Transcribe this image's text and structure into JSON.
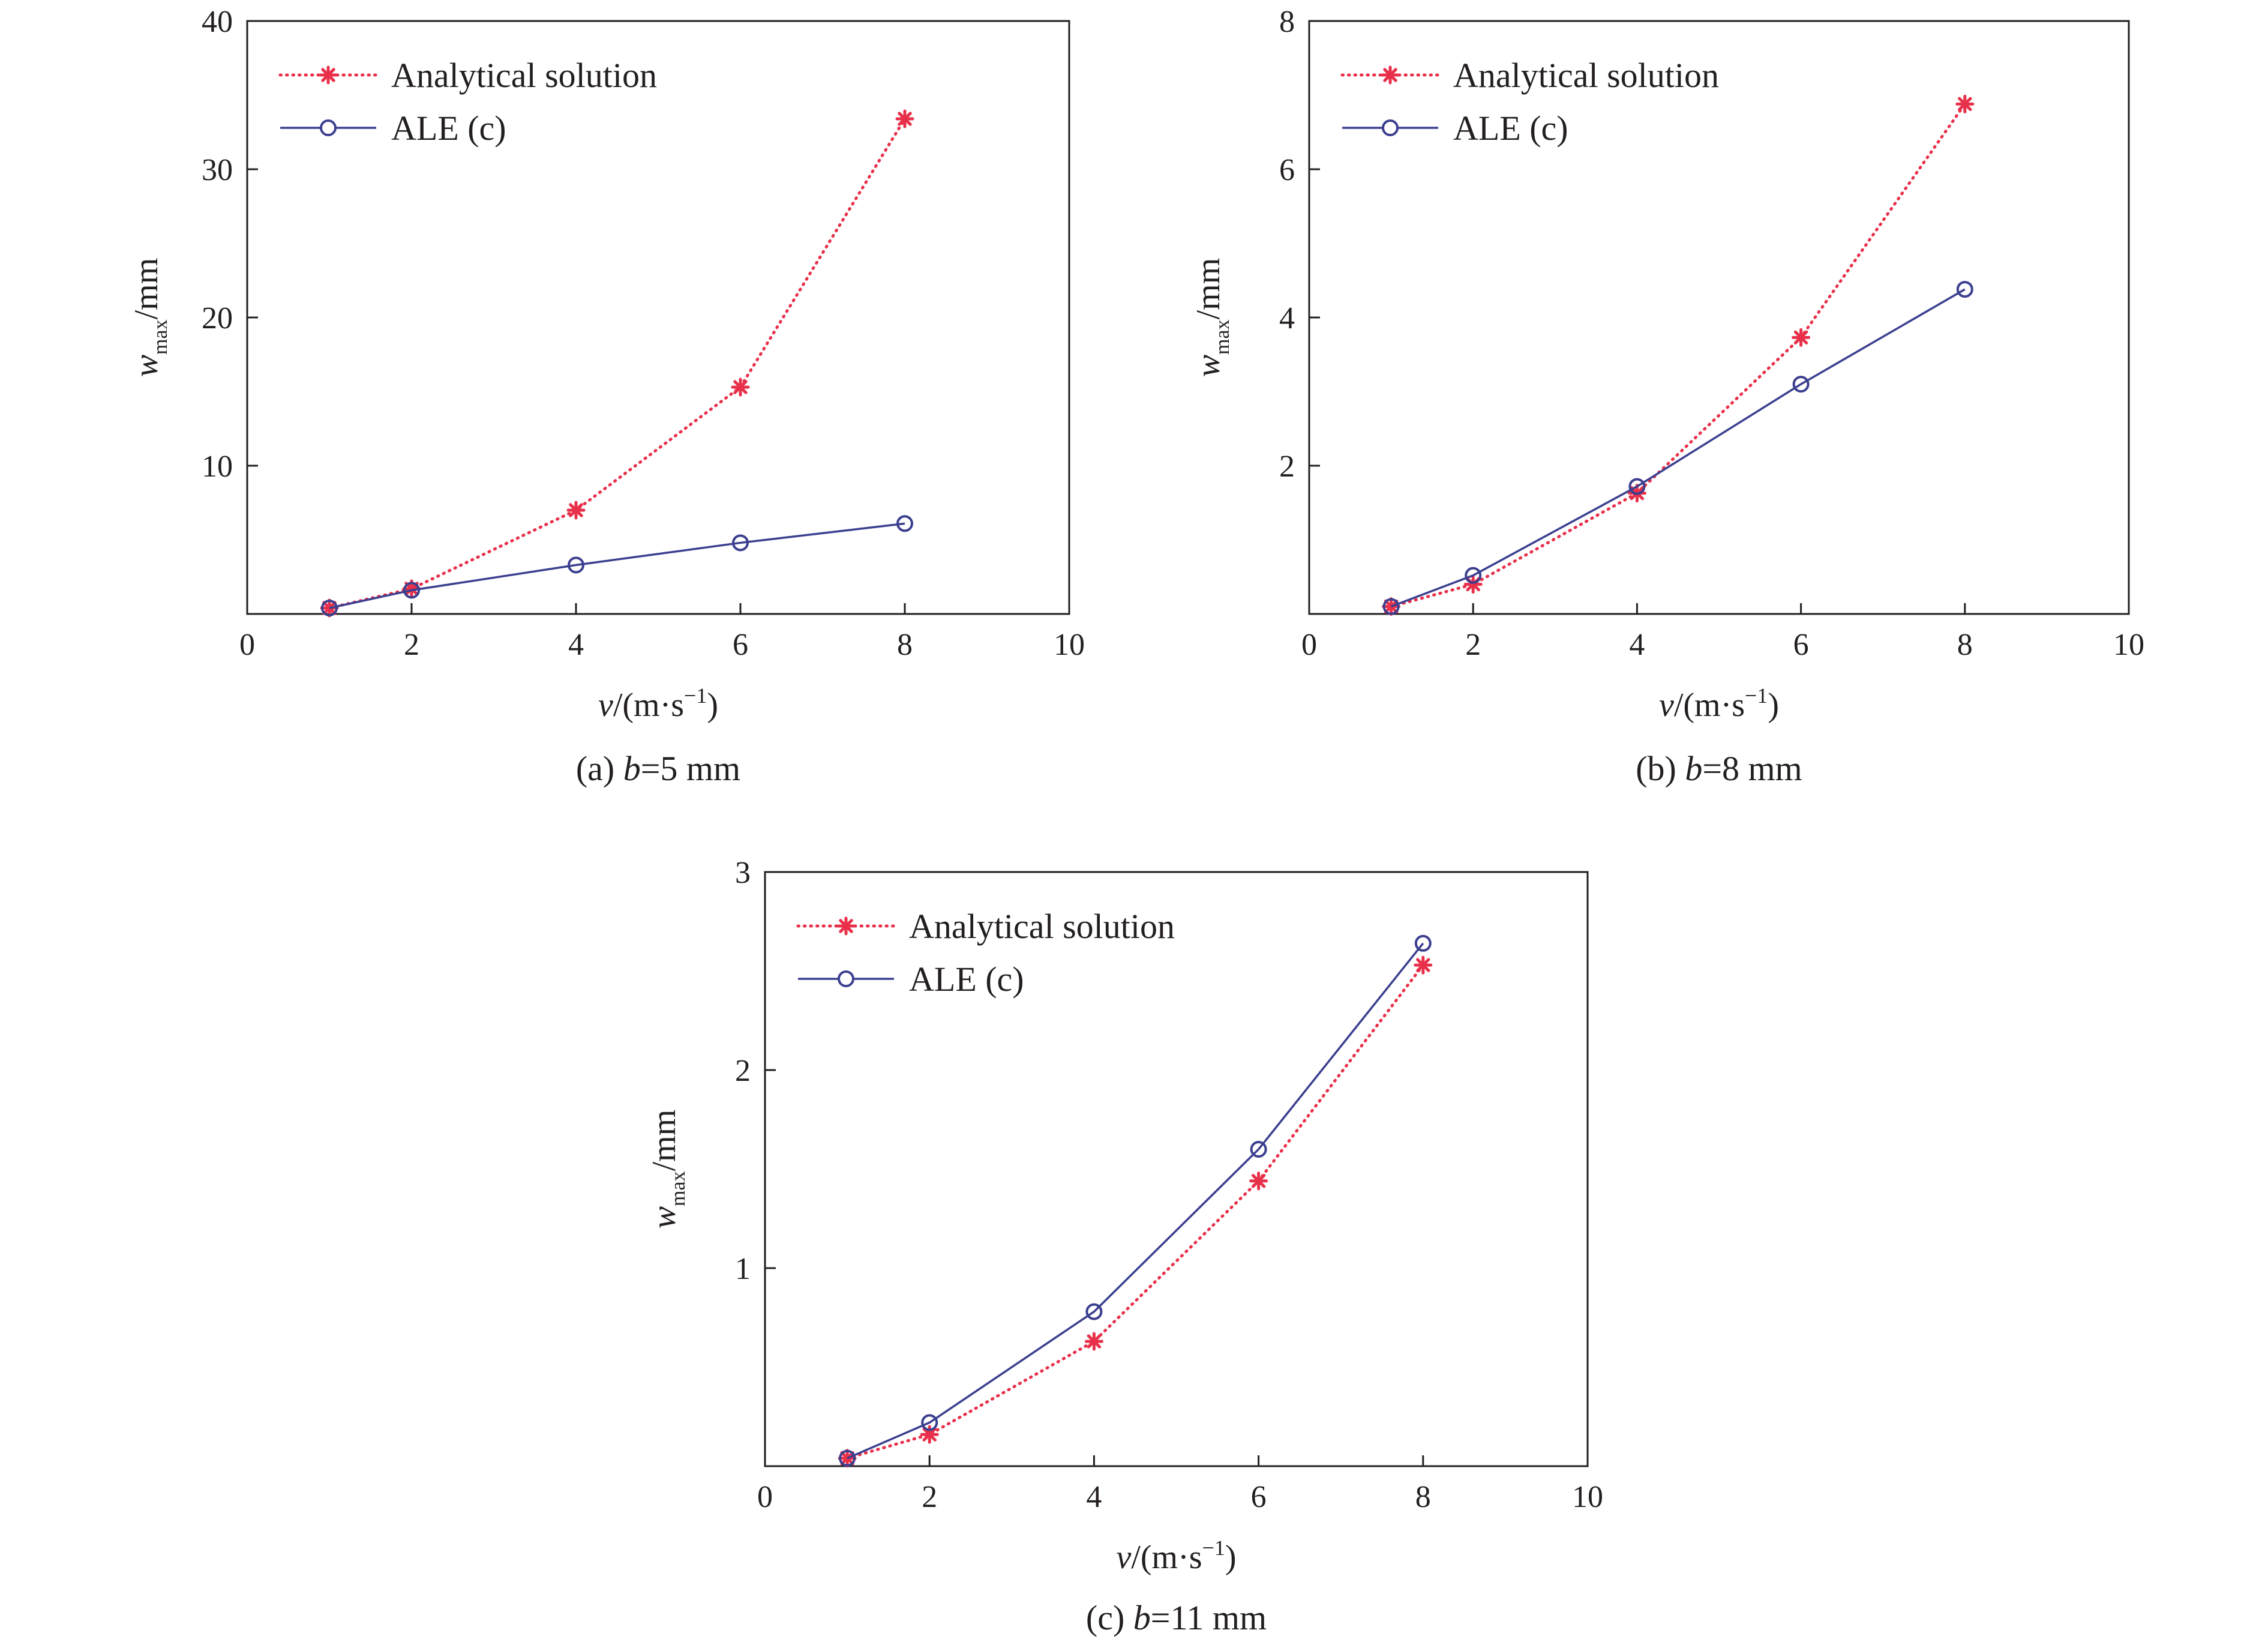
{
  "figure": {
    "colors": {
      "analytical": "#e8304a",
      "ale": "#3b3f8f",
      "axis": "#231f20"
    },
    "panels": [
      {
        "id": "a",
        "caption": {
          "prefix": "(a) ",
          "var": "b",
          "rest": "=5 mm"
        },
        "ylabel": {
          "main": "w",
          "sub": "max",
          "unit": "/mm"
        },
        "xlabel": {
          "main": "v",
          "unit": "/(m·s",
          "exp": "−1",
          "close": ")"
        }
      },
      {
        "id": "b",
        "caption": {
          "prefix": "(b) ",
          "var": "b",
          "rest": "=8 mm"
        },
        "ylabel": {
          "main": "w",
          "sub": "max",
          "unit": "/mm"
        },
        "xlabel": {
          "main": "v",
          "unit": "/(m·s",
          "exp": "−1",
          "close": ")"
        }
      },
      {
        "id": "c",
        "caption": {
          "prefix": "(c) ",
          "var": "b",
          "rest": "=11 mm"
        },
        "ylabel": {
          "main": "w",
          "sub": "max",
          "unit": "/mm"
        },
        "xlabel": {
          "main": "v",
          "unit": "/(m·s",
          "exp": "−1",
          "close": ")"
        }
      }
    ]
  },
  "chart_data": [
    {
      "type": "line",
      "xlim": [
        0,
        10
      ],
      "ylim": [
        0,
        40
      ],
      "xticks": [
        0,
        2,
        4,
        6,
        8,
        10
      ],
      "yticks": [
        0,
        10,
        20,
        30,
        40
      ],
      "ytick_labels": [
        "10",
        "20",
        "30",
        "40"
      ],
      "legend_position": "top-left",
      "grid": false,
      "series": [
        {
          "name": "Analytical solution",
          "style": "dotted-star",
          "x": [
            1,
            2,
            4,
            6,
            8
          ],
          "y": [
            0.4,
            1.7,
            7.0,
            15.3,
            33.4
          ]
        },
        {
          "name": "ALE (c)",
          "style": "solid-circle",
          "x": [
            1,
            2,
            4,
            6,
            8
          ],
          "y": [
            0.4,
            1.6,
            3.3,
            4.8,
            6.1
          ]
        }
      ]
    },
    {
      "type": "line",
      "xlim": [
        0,
        10
      ],
      "ylim": [
        0,
        8
      ],
      "xticks": [
        0,
        2,
        4,
        6,
        8,
        10
      ],
      "yticks": [
        0,
        2,
        4,
        6,
        8
      ],
      "ytick_labels": [
        "2",
        "4",
        "6",
        "8"
      ],
      "legend_position": "top-left",
      "grid": false,
      "series": [
        {
          "name": "Analytical solution",
          "style": "dotted-star",
          "x": [
            1,
            2,
            4,
            6,
            8
          ],
          "y": [
            0.1,
            0.4,
            1.63,
            3.73,
            6.88
          ]
        },
        {
          "name": "ALE (c)",
          "style": "solid-circle",
          "x": [
            1,
            2,
            4,
            6,
            8
          ],
          "y": [
            0.1,
            0.52,
            1.72,
            3.1,
            4.38
          ]
        }
      ]
    },
    {
      "type": "line",
      "xlim": [
        0,
        10
      ],
      "ylim": [
        0,
        3
      ],
      "xticks": [
        0,
        2,
        4,
        6,
        8,
        10
      ],
      "yticks": [
        0,
        1,
        2,
        3
      ],
      "ytick_labels": [
        "1",
        "2",
        "3"
      ],
      "legend_position": "top-left",
      "grid": false,
      "series": [
        {
          "name": "Analytical solution",
          "style": "dotted-star",
          "x": [
            1,
            2,
            4,
            6,
            8
          ],
          "y": [
            0.04,
            0.16,
            0.63,
            1.44,
            2.53
          ]
        },
        {
          "name": "ALE (c)",
          "style": "solid-circle",
          "x": [
            1,
            2,
            4,
            6,
            8
          ],
          "y": [
            0.04,
            0.22,
            0.78,
            1.6,
            2.64
          ]
        }
      ]
    }
  ]
}
